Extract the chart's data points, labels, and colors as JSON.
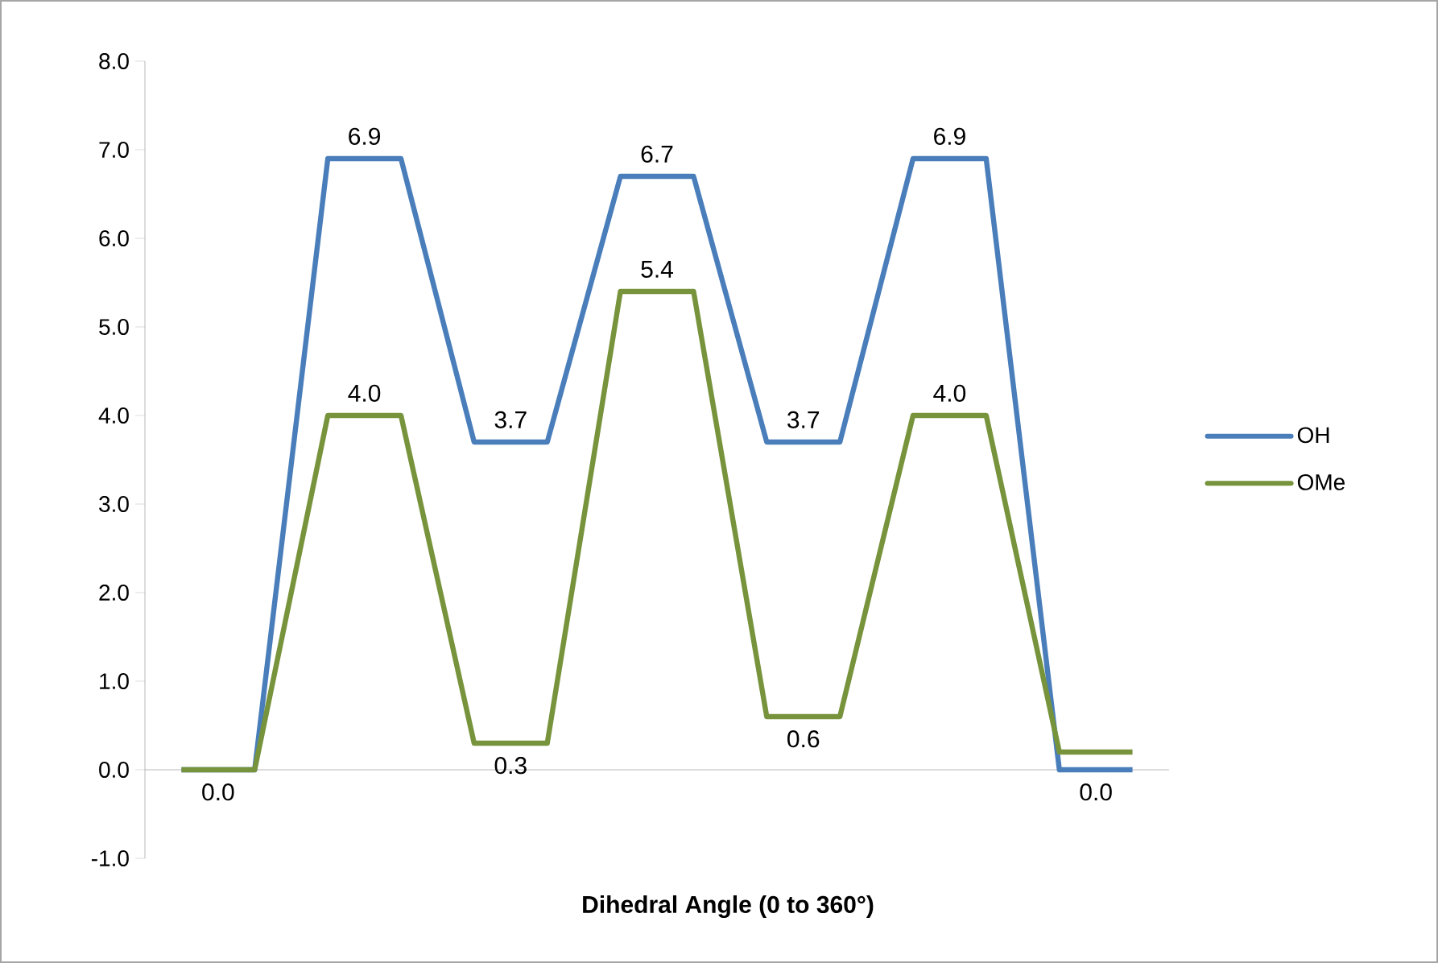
{
  "chart_data": {
    "type": "line",
    "xlabel": "Dihedral Angle (0 to 360°)",
    "categories": [
      null,
      null,
      null,
      null,
      null,
      null,
      null,
      null,
      null,
      null,
      null,
      null,
      null,
      null
    ],
    "series": [
      {
        "name": "OH",
        "color": "#4a7ebb",
        "values": [
          0,
          0,
          6.9,
          6.9,
          3.7,
          3.7,
          6.7,
          6.7,
          3.7,
          3.7,
          6.9,
          6.9,
          0,
          0
        ],
        "value_labels": [
          null,
          null,
          "6.9",
          null,
          "3.7",
          null,
          "6.7",
          null,
          "3.7",
          null,
          "6.9",
          null,
          "0.0",
          null
        ]
      },
      {
        "name": "OMe",
        "color": "#77933c",
        "values": [
          0,
          0,
          4.0,
          4.0,
          0.3,
          0.3,
          5.4,
          5.4,
          0.6,
          0.6,
          4.0,
          4.0,
          0.2,
          0.2
        ],
        "value_labels": [
          "0.0",
          null,
          "4.0",
          null,
          "0.3",
          null,
          "5.4",
          null,
          "0.6",
          null,
          "4.0",
          null,
          null,
          null
        ]
      }
    ],
    "ylim": [
      -1,
      8
    ],
    "yticks": [
      {
        "value": -1,
        "label": "-1.0"
      },
      {
        "value": 0,
        "label": "0.0"
      },
      {
        "value": 1,
        "label": "1.0"
      },
      {
        "value": 2,
        "label": "2.0"
      },
      {
        "value": 3,
        "label": "3.0"
      },
      {
        "value": 4,
        "label": "4.0"
      },
      {
        "value": 5,
        "label": "5.0"
      },
      {
        "value": 6,
        "label": "6.0"
      },
      {
        "value": 7,
        "label": "7.0"
      },
      {
        "value": 8,
        "label": "8.0"
      }
    ],
    "legend": "right",
    "marker": "none",
    "line_style": "solid"
  }
}
